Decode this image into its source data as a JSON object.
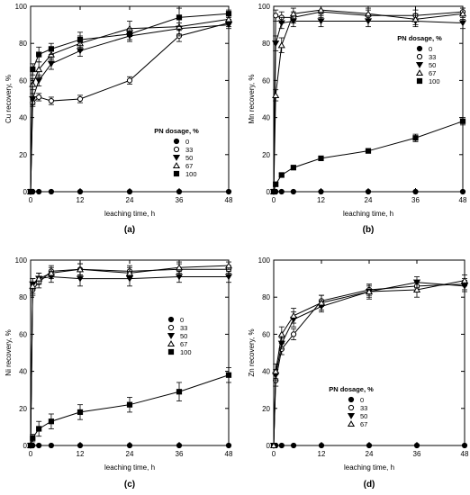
{
  "chart_data": [
    {
      "type": "line",
      "panel_label": "(a)",
      "xlabel": "leaching time, h",
      "ylabel": "Cu recovery, %",
      "xlim": [
        0,
        48
      ],
      "ylim": [
        0,
        100
      ],
      "x_ticks": [
        0,
        12,
        24,
        36,
        48
      ],
      "y_ticks": [
        0,
        20,
        40,
        60,
        80,
        100
      ],
      "legend_title": "PN dosage, %",
      "legend_position": "bottom-right",
      "grid": false,
      "series": [
        {
          "name": "0",
          "marker": "filled-circle",
          "x": [
            0,
            0.5,
            2,
            5,
            12,
            24,
            36,
            48
          ],
          "y": [
            0,
            0,
            0,
            0,
            0,
            0,
            0,
            0
          ],
          "err": [
            0,
            0,
            0,
            0,
            0,
            0,
            0,
            0
          ]
        },
        {
          "name": "33",
          "marker": "open-circle",
          "x": [
            0,
            0.5,
            2,
            5,
            12,
            24,
            36,
            48
          ],
          "y": [
            0,
            48,
            51,
            49,
            50,
            60,
            84,
            91
          ],
          "err": [
            0,
            2,
            2,
            2,
            2,
            2,
            3,
            2
          ]
        },
        {
          "name": "50",
          "marker": "filled-triangle-down",
          "x": [
            0,
            0.5,
            2,
            5,
            12,
            24,
            36,
            48
          ],
          "y": [
            0,
            50,
            60,
            69,
            76,
            84,
            88,
            90
          ],
          "err": [
            0,
            3,
            3,
            3,
            3,
            3,
            3,
            2
          ]
        },
        {
          "name": "67",
          "marker": "open-triangle-up",
          "x": [
            0,
            0.5,
            2,
            5,
            12,
            24,
            36,
            48
          ],
          "y": [
            0,
            58,
            66,
            74,
            80,
            88,
            89,
            93
          ],
          "err": [
            0,
            3,
            4,
            3,
            4,
            4,
            5,
            2
          ]
        },
        {
          "name": "100",
          "marker": "filled-square",
          "x": [
            0,
            0.5,
            2,
            5,
            12,
            24,
            36,
            48
          ],
          "y": [
            0,
            66,
            74,
            77,
            82,
            85,
            94,
            96
          ],
          "err": [
            0,
            3,
            4,
            3,
            4,
            3,
            5,
            2
          ]
        }
      ]
    },
    {
      "type": "line",
      "panel_label": "(b)",
      "xlabel": "leaching time, h",
      "ylabel": "Mn recovery, %",
      "xlim": [
        0,
        48
      ],
      "ylim": [
        0,
        100
      ],
      "x_ticks": [
        0,
        12,
        24,
        36,
        48
      ],
      "y_ticks": [
        0,
        20,
        40,
        60,
        80,
        100
      ],
      "legend_title": "PN dosage, %",
      "legend_position": "middle-right",
      "grid": false,
      "series": [
        {
          "name": "0",
          "marker": "filled-circle",
          "x": [
            0,
            0.5,
            2,
            5,
            12,
            24,
            36,
            48
          ],
          "y": [
            0,
            0,
            0,
            0,
            0,
            0,
            0,
            0
          ],
          "err": [
            0,
            0,
            0,
            0,
            0,
            0,
            0,
            0
          ]
        },
        {
          "name": "33",
          "marker": "open-circle",
          "x": [
            0,
            0.5,
            2,
            5,
            12,
            24,
            36,
            48
          ],
          "y": [
            0,
            95,
            94,
            94,
            97,
            95,
            95,
            97
          ],
          "err": [
            0,
            3,
            3,
            3,
            3,
            3,
            3,
            2
          ]
        },
        {
          "name": "50",
          "marker": "filled-triangle-down",
          "x": [
            0,
            0.5,
            2,
            5,
            12,
            24,
            36,
            48
          ],
          "y": [
            0,
            80,
            91,
            92,
            92,
            92,
            92,
            91
          ],
          "err": [
            0,
            4,
            3,
            3,
            3,
            3,
            3,
            3
          ]
        },
        {
          "name": "67",
          "marker": "open-triangle-up",
          "x": [
            0,
            0.5,
            2,
            5,
            12,
            24,
            36,
            48
          ],
          "y": [
            0,
            52,
            79,
            96,
            98,
            96,
            93,
            96
          ],
          "err": [
            0,
            3,
            4,
            3,
            2,
            3,
            3,
            3
          ]
        },
        {
          "name": "100",
          "marker": "filled-square",
          "x": [
            0,
            0.5,
            2,
            5,
            12,
            24,
            36,
            48
          ],
          "y": [
            0,
            4,
            9,
            13,
            18,
            22,
            29,
            38
          ],
          "err": [
            0,
            1,
            1,
            1,
            1,
            1,
            2,
            2
          ]
        }
      ]
    },
    {
      "type": "line",
      "panel_label": "(c)",
      "xlabel": "leaching time, h",
      "ylabel": "Ni recovery, %",
      "xlim": [
        0,
        48
      ],
      "ylim": [
        0,
        100
      ],
      "x_ticks": [
        0,
        12,
        24,
        36,
        48
      ],
      "y_ticks": [
        0,
        20,
        40,
        60,
        80,
        100
      ],
      "legend_title": "",
      "legend_position": "middle-right",
      "grid": false,
      "series": [
        {
          "name": "0",
          "marker": "filled-circle",
          "x": [
            0,
            0.5,
            2,
            5,
            12,
            24,
            36,
            48
          ],
          "y": [
            0,
            0,
            0,
            0,
            0,
            0,
            0,
            0
          ],
          "err": [
            0,
            0,
            0,
            0,
            0,
            0,
            0,
            0
          ]
        },
        {
          "name": "33",
          "marker": "open-circle",
          "x": [
            0,
            0.5,
            2,
            5,
            12,
            24,
            36,
            48
          ],
          "y": [
            0,
            84,
            88,
            94,
            95,
            94,
            95,
            95
          ],
          "err": [
            0,
            3,
            3,
            3,
            3,
            3,
            3,
            2
          ]
        },
        {
          "name": "50",
          "marker": "filled-triangle-down",
          "x": [
            0,
            0.5,
            2,
            5,
            12,
            24,
            36,
            48
          ],
          "y": [
            0,
            87,
            90,
            91,
            90,
            90,
            91,
            91
          ],
          "err": [
            0,
            3,
            3,
            3,
            4,
            4,
            3,
            3
          ]
        },
        {
          "name": "67",
          "marker": "open-triangle-up",
          "x": [
            0,
            0.5,
            2,
            5,
            12,
            24,
            36,
            48
          ],
          "y": [
            0,
            86,
            90,
            93,
            95,
            93,
            96,
            97
          ],
          "err": [
            0,
            4,
            3,
            3,
            3,
            3,
            3,
            2
          ]
        },
        {
          "name": "100",
          "marker": "filled-square",
          "x": [
            0,
            0.5,
            2,
            5,
            12,
            24,
            36,
            48
          ],
          "y": [
            0,
            4,
            9,
            13,
            18,
            22,
            29,
            38
          ],
          "err": [
            0,
            2,
            4,
            4,
            4,
            4,
            5,
            4
          ]
        }
      ]
    },
    {
      "type": "line",
      "panel_label": "(d)",
      "xlabel": "leaching time, h",
      "ylabel": "Zn recovery, %",
      "xlim": [
        0,
        48
      ],
      "ylim": [
        0,
        100
      ],
      "x_ticks": [
        0,
        12,
        24,
        36,
        48
      ],
      "y_ticks": [
        0,
        20,
        40,
        60,
        80,
        100
      ],
      "legend_title": "PN dosage, %",
      "legend_position": "bottom-right",
      "grid": false,
      "series": [
        {
          "name": "0",
          "marker": "filled-circle",
          "x": [
            0,
            0.5,
            2,
            5,
            12,
            24,
            36,
            48
          ],
          "y": [
            0,
            0,
            0,
            0,
            0,
            0,
            0,
            0
          ],
          "err": [
            0,
            0,
            0,
            0,
            0,
            0,
            0,
            0
          ]
        },
        {
          "name": "33",
          "marker": "open-circle",
          "x": [
            0,
            0.5,
            2,
            5,
            12,
            24,
            36,
            48
          ],
          "y": [
            0,
            35,
            52,
            60,
            78,
            84,
            86,
            87
          ],
          "err": [
            0,
            3,
            3,
            3,
            3,
            3,
            3,
            3
          ]
        },
        {
          "name": "50",
          "marker": "filled-triangle-down",
          "x": [
            0,
            0.5,
            2,
            5,
            12,
            24,
            36,
            48
          ],
          "y": [
            0,
            38,
            55,
            68,
            75,
            83,
            88,
            86
          ],
          "err": [
            0,
            3,
            3,
            4,
            3,
            3,
            3,
            3
          ]
        },
        {
          "name": "67",
          "marker": "open-triangle-up",
          "x": [
            0,
            0.5,
            2,
            5,
            12,
            24,
            36,
            48
          ],
          "y": [
            0,
            40,
            60,
            70,
            77,
            83,
            84,
            89
          ],
          "err": [
            0,
            4,
            4,
            4,
            4,
            4,
            4,
            3
          ]
        }
      ]
    }
  ]
}
